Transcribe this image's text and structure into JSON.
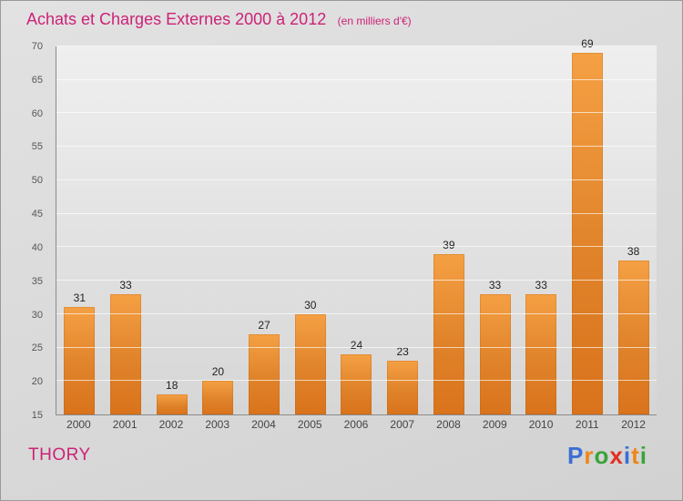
{
  "header": {
    "title": "Achats et Charges Externes 2000 à 2012",
    "subtitle": "(en milliers d'€)",
    "title_color": "#cc2277"
  },
  "footer": {
    "company": "THORY",
    "company_color": "#cc2277",
    "logo_text": "Proxiti",
    "logo_letters": [
      {
        "ch": "P",
        "color": "#3b6fd4"
      },
      {
        "ch": "r",
        "color": "#f08519"
      },
      {
        "ch": "o",
        "color": "#3aa33a"
      },
      {
        "ch": "x",
        "color": "#e03123"
      },
      {
        "ch": "i",
        "color": "#3b6fd4"
      },
      {
        "ch": "t",
        "color": "#f08519"
      },
      {
        "ch": "i",
        "color": "#3aa33a"
      }
    ]
  },
  "chart_data": {
    "type": "bar",
    "title": "Achats et Charges Externes 2000 à 2012",
    "subtitle": "(en milliers d'€)",
    "categories": [
      "2000",
      "2001",
      "2002",
      "2003",
      "2004",
      "2005",
      "2006",
      "2007",
      "2008",
      "2009",
      "2010",
      "2011",
      "2012"
    ],
    "values": [
      31,
      33,
      18,
      20,
      27,
      30,
      24,
      23,
      39,
      33,
      33,
      69,
      38
    ],
    "xlabel": "",
    "ylabel": "",
    "ylim": [
      15,
      70
    ],
    "ytick_step": 5,
    "grid": true,
    "legend": "none",
    "bar_color_top": "#f5a044",
    "bar_color_bottom": "#d9731c"
  }
}
